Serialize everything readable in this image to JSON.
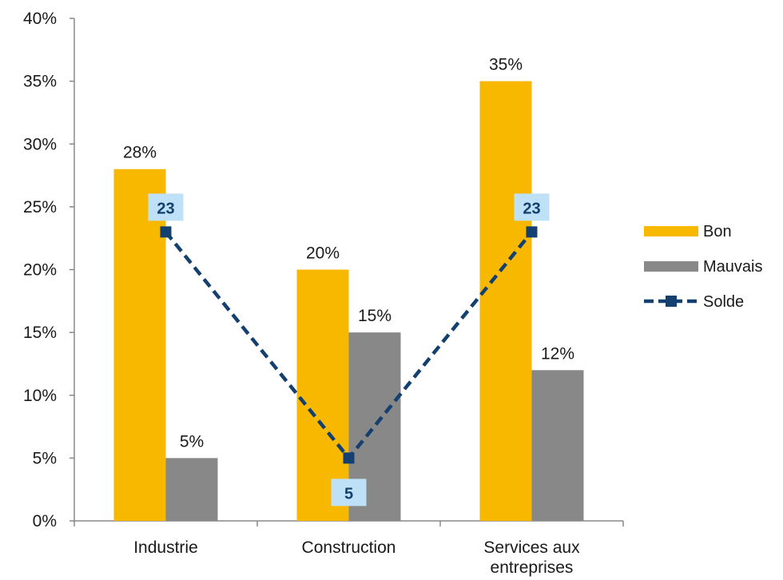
{
  "chart_data": {
    "type": "bar",
    "categories": [
      "Industrie",
      "Construction",
      "Services aux entreprises"
    ],
    "category_lines": [
      [
        "Industrie"
      ],
      [
        "Construction"
      ],
      [
        "Services aux",
        "entreprises"
      ]
    ],
    "yticks": [
      "0%",
      "5%",
      "10%",
      "15%",
      "20%",
      "25%",
      "30%",
      "35%",
      "40%"
    ],
    "ylim": [
      0,
      40
    ],
    "series": [
      {
        "name": "Bon",
        "type": "bar",
        "color": "#F9B800",
        "values": [
          28,
          20,
          35
        ],
        "labels": [
          "28%",
          "20%",
          "35%"
        ]
      },
      {
        "name": "Mauvais",
        "type": "bar",
        "color": "#888888",
        "values": [
          5,
          15,
          12
        ],
        "labels": [
          "5%",
          "15%",
          "12%"
        ]
      },
      {
        "name": "Solde",
        "type": "line",
        "style": "dashed",
        "marker": "square",
        "color": "#13406E",
        "values": [
          23,
          5,
          23
        ],
        "labels": [
          "23",
          "5",
          "23"
        ]
      }
    ],
    "legend_position": "right",
    "grid": false
  }
}
